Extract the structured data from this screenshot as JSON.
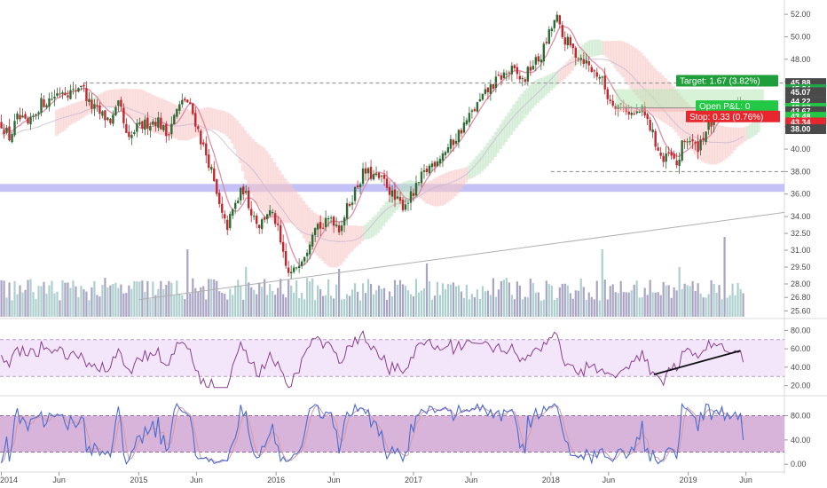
{
  "chart_data": {
    "type": "candlestick",
    "panels": {
      "price": {
        "y_ticks": [
          "52.00",
          "50.00",
          "48.00",
          "46.00",
          "44.00",
          "42.00",
          "40.00",
          "38.00",
          "36.00",
          "34.00",
          "32.50",
          "31.00",
          "29.50",
          "28.00",
          "26.80",
          "25.60"
        ],
        "ylim": [
          25.0,
          52.8
        ],
        "hline_levels": [
          45.88,
          38.0
        ],
        "support_band": [
          36.2,
          36.9
        ],
        "trendline": {
          "from": [
            2015.0,
            26.6
          ],
          "to": [
            2019.6,
            34.2
          ]
        },
        "price_tags": [
          {
            "label": "45.88",
            "value": 45.88,
            "color": "#4a4a4a"
          },
          {
            "label": "45.34",
            "value": 45.34,
            "color": "#21a64a"
          },
          {
            "label": "45.07",
            "value": 45.07,
            "color": "#4a4a4a"
          },
          {
            "label": "44.22",
            "value": 44.22,
            "color": "#4a4a4a"
          },
          {
            "label": "43.67",
            "value": 43.67,
            "color": "#21c944"
          },
          {
            "label": "43.67",
            "value": 43.37,
            "color": "#4a4a4a"
          },
          {
            "label": "43.48",
            "value": 42.88,
            "color": "#21c944"
          },
          {
            "label": "43.34",
            "value": 42.38,
            "color": "#e8262d"
          },
          {
            "label": "38.00",
            "value": 41.78,
            "color": "#4a4a4a"
          }
        ],
        "position": {
          "target_label": "Target: 1.67 (3.82%)",
          "open_label": "Open P&L: 0",
          "stop_label": "Stop: 0.33 (0.76%)",
          "entry": 43.67,
          "target": 45.34,
          "stop": 43.34
        }
      },
      "rsi": {
        "y_ticks": [
          "80.00",
          "60.00",
          "40.00",
          "20.00"
        ],
        "ylim": [
          10,
          90
        ],
        "band": [
          30,
          70
        ],
        "trendline": {
          "from": [
            2018.75,
            32
          ],
          "to": [
            2019.38,
            58
          ]
        }
      },
      "stochastic": {
        "y_ticks": [
          "80.00",
          "40.00",
          "0.00"
        ],
        "ylim": [
          -10,
          110
        ],
        "band": [
          20,
          80
        ]
      }
    },
    "x_ticks": [
      {
        "label": "2014",
        "t": 2014.0
      },
      {
        "label": "Jun",
        "t": 2014.42
      },
      {
        "label": "2015",
        "t": 2015.0
      },
      {
        "label": "Jun",
        "t": 2015.42
      },
      {
        "label": "2016",
        "t": 2016.0
      },
      {
        "label": "Jun",
        "t": 2016.42
      },
      {
        "label": "2017",
        "t": 2017.0
      },
      {
        "label": "Jun",
        "t": 2017.42
      },
      {
        "label": "2018",
        "t": 2018.0
      },
      {
        "label": "Jun",
        "t": 2018.42
      },
      {
        "label": "2019",
        "t": 2019.0
      },
      {
        "label": "Jun",
        "t": 2019.42
      }
    ],
    "price_path": [
      [
        2014.0,
        42.3
      ],
      [
        2014.06,
        41.0
      ],
      [
        2014.12,
        42.8
      ],
      [
        2014.2,
        42.0
      ],
      [
        2014.28,
        44.0
      ],
      [
        2014.36,
        44.5
      ],
      [
        2014.44,
        45.3
      ],
      [
        2014.52,
        45.0
      ],
      [
        2014.58,
        45.9
      ],
      [
        2014.64,
        44.0
      ],
      [
        2014.72,
        43.1
      ],
      [
        2014.8,
        42.5
      ],
      [
        2014.86,
        44.0
      ],
      [
        2014.92,
        40.5
      ],
      [
        2014.98,
        41.8
      ],
      [
        2015.06,
        42.3
      ],
      [
        2015.14,
        42.6
      ],
      [
        2015.2,
        41.3
      ],
      [
        2015.28,
        43.5
      ],
      [
        2015.34,
        44.5
      ],
      [
        2015.4,
        43.0
      ],
      [
        2015.46,
        40.5
      ],
      [
        2015.52,
        38.5
      ],
      [
        2015.56,
        36.2
      ],
      [
        2015.6,
        34.2
      ],
      [
        2015.64,
        33.0
      ],
      [
        2015.7,
        35.0
      ],
      [
        2015.76,
        36.5
      ],
      [
        2015.82,
        34.5
      ],
      [
        2015.88,
        33.2
      ],
      [
        2015.94,
        34.5
      ],
      [
        2016.0,
        33.5
      ],
      [
        2016.04,
        31.0
      ],
      [
        2016.08,
        29.0
      ],
      [
        2016.12,
        28.8
      ],
      [
        2016.16,
        30.0
      ],
      [
        2016.22,
        31.0
      ],
      [
        2016.28,
        33.5
      ],
      [
        2016.34,
        33.0
      ],
      [
        2016.4,
        34.0
      ],
      [
        2016.46,
        33.0
      ],
      [
        2016.52,
        34.8
      ],
      [
        2016.58,
        36.5
      ],
      [
        2016.64,
        38.0
      ],
      [
        2016.72,
        37.5
      ],
      [
        2016.8,
        37.0
      ],
      [
        2016.86,
        35.5
      ],
      [
        2016.92,
        35.0
      ],
      [
        2017.0,
        36.0
      ],
      [
        2017.06,
        37.5
      ],
      [
        2017.12,
        38.5
      ],
      [
        2017.2,
        39.5
      ],
      [
        2017.28,
        40.5
      ],
      [
        2017.36,
        42.0
      ],
      [
        2017.44,
        43.5
      ],
      [
        2017.5,
        44.5
      ],
      [
        2017.56,
        45.5
      ],
      [
        2017.64,
        46.5
      ],
      [
        2017.72,
        47.0
      ],
      [
        2017.8,
        46.0
      ],
      [
        2017.86,
        47.5
      ],
      [
        2017.92,
        48.0
      ],
      [
        2017.98,
        50.0
      ],
      [
        2018.04,
        51.8
      ],
      [
        2018.08,
        50.0
      ],
      [
        2018.12,
        49.5
      ],
      [
        2018.18,
        48.5
      ],
      [
        2018.24,
        48.0
      ],
      [
        2018.3,
        47.0
      ],
      [
        2018.36,
        46.5
      ],
      [
        2018.42,
        44.5
      ],
      [
        2018.48,
        44.0
      ],
      [
        2018.54,
        43.7
      ],
      [
        2018.6,
        43.0
      ],
      [
        2018.66,
        43.5
      ],
      [
        2018.72,
        42.0
      ],
      [
        2018.78,
        40.0
      ],
      [
        2018.82,
        38.8
      ],
      [
        2018.86,
        39.5
      ],
      [
        2018.92,
        38.5
      ],
      [
        2018.96,
        40.5
      ],
      [
        2019.0,
        41.0
      ],
      [
        2019.06,
        40.0
      ],
      [
        2019.12,
        41.5
      ],
      [
        2019.18,
        42.5
      ],
      [
        2019.24,
        43.0
      ],
      [
        2019.3,
        43.7
      ],
      [
        2019.36,
        44.2
      ],
      [
        2019.4,
        43.5
      ]
    ]
  }
}
